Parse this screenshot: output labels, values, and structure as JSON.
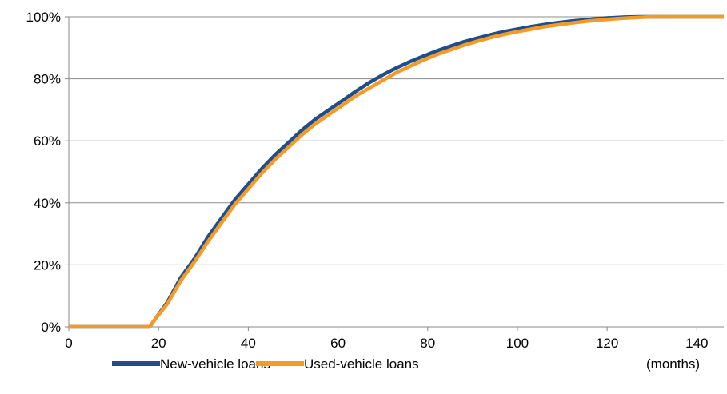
{
  "chart_data": {
    "type": "line",
    "title": "",
    "xlabel": "(months)",
    "ylabel": "",
    "xlim": [
      0,
      146
    ],
    "ylim": [
      0,
      100
    ],
    "x_ticks": [
      0,
      20,
      40,
      60,
      80,
      100,
      120,
      140
    ],
    "x_tick_labels": [
      "0",
      "20",
      "40",
      "60",
      "80",
      "100",
      "120",
      "140"
    ],
    "y_ticks": [
      0,
      20,
      40,
      60,
      80,
      100
    ],
    "y_tick_labels": [
      "0%",
      "20%",
      "40%",
      "60%",
      "80%",
      "100%"
    ],
    "grid": "horizontal",
    "legend": "bottom",
    "series": [
      {
        "name": "New-vehicle loans",
        "color": "#1f4e8c",
        "x": [
          0,
          18,
          19,
          22,
          25,
          28,
          31,
          34,
          37,
          40,
          43,
          46,
          49,
          52,
          55,
          58,
          61,
          64,
          67,
          70,
          73,
          76,
          79,
          82,
          85,
          88,
          91,
          94,
          97,
          100,
          103,
          106,
          109,
          112,
          115,
          118,
          121,
          124,
          127,
          130,
          135,
          140,
          146
        ],
        "y": [
          0,
          0,
          2,
          8,
          16,
          22,
          29,
          35,
          41,
          46,
          51,
          55.5,
          59.5,
          63.5,
          67,
          70,
          73,
          76,
          78.8,
          81.3,
          83.5,
          85.5,
          87.3,
          89,
          90.5,
          91.9,
          93.1,
          94.2,
          95.2,
          96,
          96.8,
          97.5,
          98.1,
          98.6,
          99,
          99.4,
          99.7,
          99.9,
          100,
          100,
          100,
          100,
          100
        ]
      },
      {
        "name": "Used-vehicle loans",
        "color": "#f59a27",
        "x": [
          0,
          18,
          19,
          22,
          25,
          28,
          31,
          34,
          37,
          40,
          43,
          46,
          49,
          52,
          55,
          58,
          61,
          64,
          67,
          70,
          73,
          76,
          79,
          82,
          85,
          88,
          91,
          94,
          97,
          100,
          103,
          106,
          109,
          112,
          115,
          118,
          121,
          124,
          127,
          130,
          135,
          140,
          146
        ],
        "y": [
          0,
          0,
          2,
          7.5,
          15,
          21,
          27.5,
          33.5,
          39.5,
          44.5,
          49.5,
          54,
          58,
          62,
          65.5,
          68.5,
          71.5,
          74.5,
          77,
          79.5,
          82,
          84,
          86,
          87.8,
          89.3,
          90.8,
          92.1,
          93.3,
          94.3,
          95.2,
          96,
          96.8,
          97.4,
          98,
          98.5,
          98.9,
          99.3,
          99.6,
          99.8,
          100,
          100,
          100,
          100
        ]
      }
    ]
  }
}
